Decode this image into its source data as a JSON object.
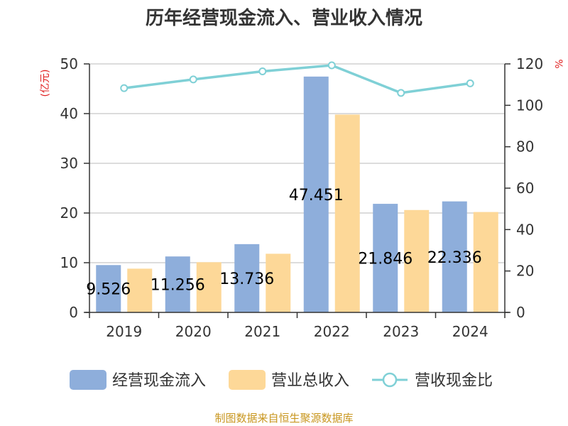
{
  "chart_data": {
    "type": "bar",
    "title": "历年经营现金流入、营业收入情况",
    "left_unit": "(亿元)",
    "right_unit": "%",
    "categories": [
      "2019",
      "2020",
      "2021",
      "2022",
      "2023",
      "2024"
    ],
    "ylim_left": [
      0,
      50
    ],
    "yticks_left": [
      0,
      10,
      20,
      30,
      40,
      50
    ],
    "ylim_right": [
      0,
      120
    ],
    "yticks_right": [
      0,
      20,
      40,
      60,
      80,
      100,
      120
    ],
    "grid": true,
    "legend_position": "bottom",
    "series": [
      {
        "name": "经营现金流入",
        "type": "bar",
        "axis": "left",
        "color": "#8eaedb",
        "values": [
          9.526,
          11.256,
          13.736,
          47.451,
          21.846,
          22.336
        ],
        "labels": [
          "9.526",
          "11.256",
          "13.736",
          "47.451",
          "21.846",
          "22.336"
        ]
      },
      {
        "name": "营业总收入",
        "type": "bar",
        "axis": "left",
        "color": "#fdd898",
        "values": [
          8.8,
          10.1,
          11.8,
          39.8,
          20.6,
          20.2
        ]
      },
      {
        "name": "营收现金比",
        "type": "line",
        "axis": "right",
        "color": "#7fd0d6",
        "values": [
          108.3,
          112.5,
          116.4,
          119.3,
          106.0,
          110.6
        ]
      }
    ]
  },
  "footer": {
    "source": "制图数据来自恒生聚源数据库"
  }
}
